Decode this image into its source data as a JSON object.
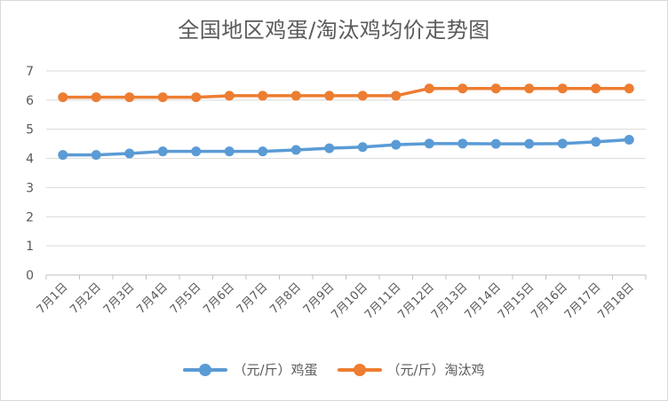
{
  "chart_data": {
    "type": "line",
    "title": "全国地区鸡蛋/淘汰鸡均价走势图",
    "categories": [
      "7月1日",
      "7月2日",
      "7月3日",
      "7月4日",
      "7月5日",
      "7月6日",
      "7月7日",
      "7月8日",
      "7月9日",
      "7月10日",
      "7月11日",
      "7月12日",
      "7月13日",
      "7月14日",
      "7月15日",
      "7月16日",
      "7月17日",
      "7月18日"
    ],
    "series": [
      {
        "name": "（元/斤）鸡蛋",
        "color": "#5b9bd5",
        "values": [
          4.12,
          4.12,
          4.17,
          4.24,
          4.24,
          4.24,
          4.24,
          4.29,
          4.35,
          4.39,
          4.47,
          4.51,
          4.51,
          4.5,
          4.5,
          4.51,
          4.57,
          4.64
        ]
      },
      {
        "name": "（元/斤）淘汰鸡",
        "color": "#ed7d31",
        "values": [
          6.1,
          6.1,
          6.1,
          6.1,
          6.1,
          6.15,
          6.15,
          6.15,
          6.15,
          6.15,
          6.15,
          6.4,
          6.4,
          6.4,
          6.4,
          6.4,
          6.4,
          6.4
        ]
      }
    ],
    "yticks": [
      0,
      1,
      2,
      3,
      4,
      5,
      6,
      7
    ],
    "ylim": [
      0,
      7
    ],
    "grid": true,
    "legend_position": "bottom"
  }
}
